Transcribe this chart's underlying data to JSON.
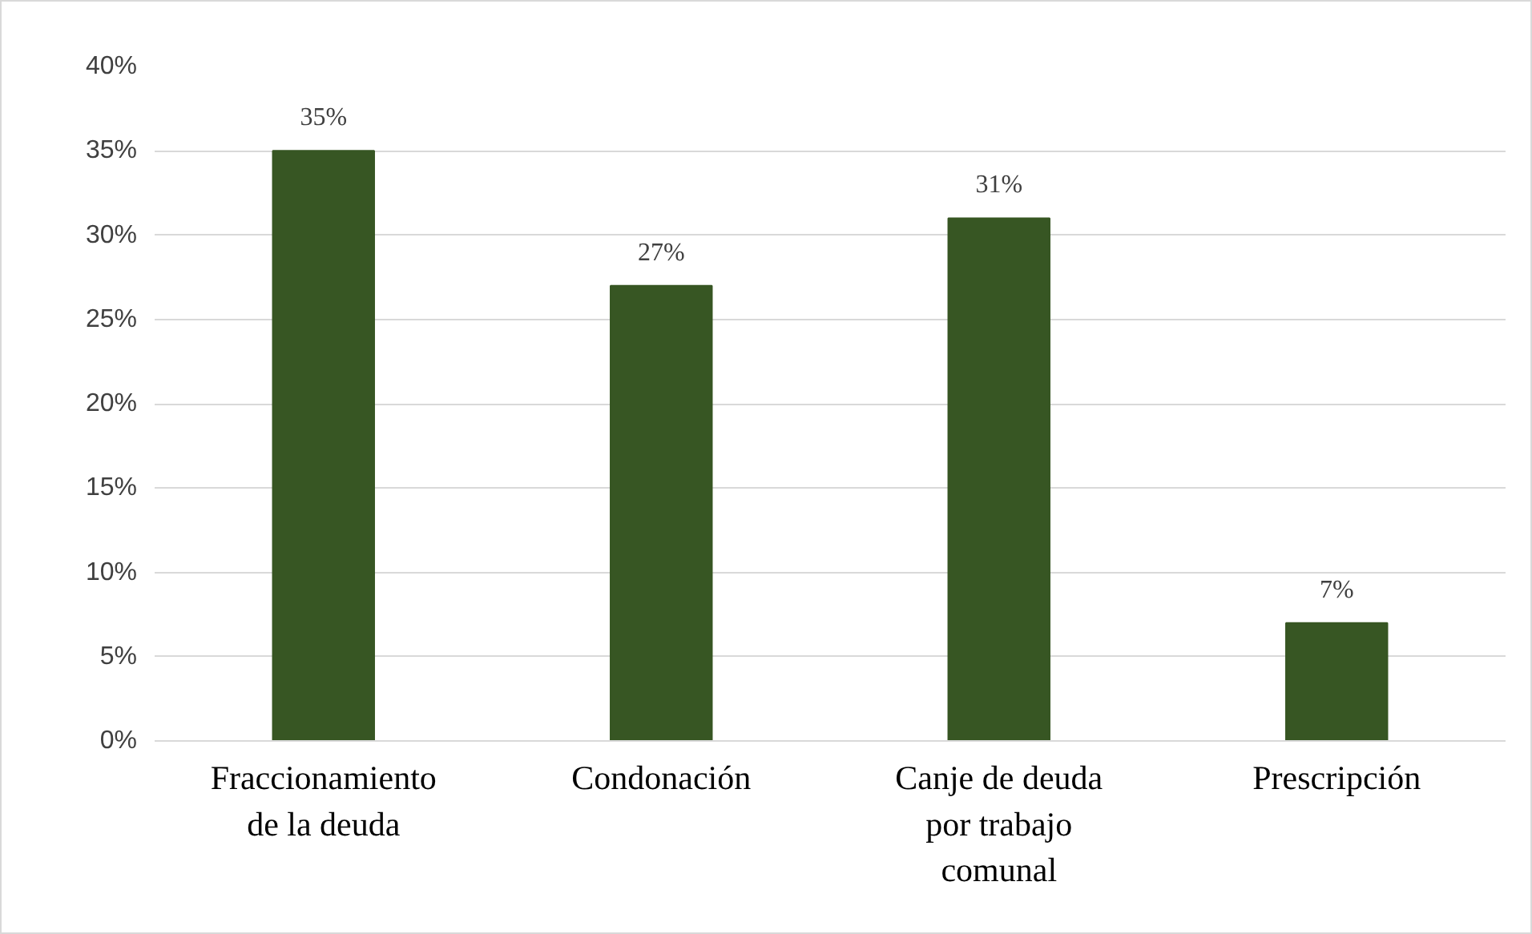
{
  "chart_data": {
    "type": "bar",
    "categories": [
      "Fraccionamiento de la deuda",
      "Condonación",
      "Canje de deuda por trabajo comunal",
      "Prescripción"
    ],
    "values": [
      35,
      27,
      31,
      7
    ],
    "value_labels": [
      "35%",
      "27%",
      "31%",
      "7%"
    ],
    "color": "#375623",
    "ylim": [
      0,
      40
    ],
    "yticks": [
      {
        "value": 0,
        "label": "0%"
      },
      {
        "value": 5,
        "label": "5%"
      },
      {
        "value": 10,
        "label": "10%"
      },
      {
        "value": 15,
        "label": "15%"
      },
      {
        "value": 20,
        "label": "20%"
      },
      {
        "value": 25,
        "label": "25%"
      },
      {
        "value": 30,
        "label": "30%"
      },
      {
        "value": 35,
        "label": "35%"
      },
      {
        "value": 40,
        "label": "40%"
      }
    ],
    "grid": "y"
  }
}
